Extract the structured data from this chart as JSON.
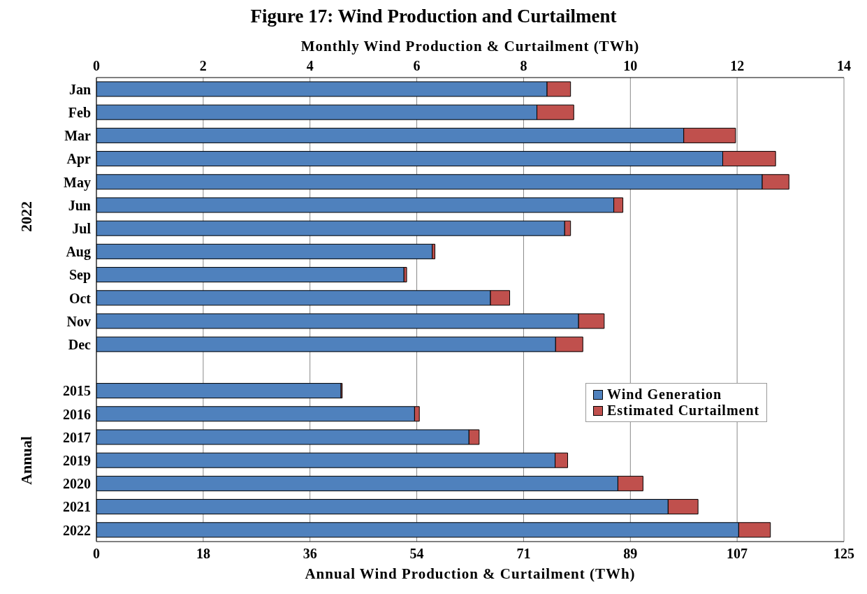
{
  "chart_data": {
    "type": "bar",
    "orientation": "horizontal",
    "stacked": true,
    "title": "Figure 17:  Wind Production and Curtailment",
    "x2label": "Monthly Wind Production & Curtailment (TWh)",
    "xlabel": "Annual Wind Production & Curtailment (TWh)",
    "categories": [
      "Jan",
      "Feb",
      "Mar",
      "Apr",
      "May",
      "Jun",
      "Jul",
      "Aug",
      "Sep",
      "Oct",
      "Nov",
      "Dec",
      null,
      "2015",
      "2016",
      "2017",
      "2019",
      "2020",
      "2021",
      "2022"
    ],
    "series": [
      {
        "name": "Wind Generation",
        "color": "#4f81bd",
        "axis": "x2",
        "values": [
          8.44,
          8.25,
          11.0,
          11.73,
          12.47,
          9.69,
          8.77,
          6.29,
          5.76,
          7.38,
          9.03,
          8.6,
          null,
          null,
          null,
          null,
          null,
          null,
          null,
          null
        ]
      },
      {
        "name": "Estimated Curtailment",
        "color": "#c0504d",
        "axis": "x2",
        "values": [
          0.44,
          0.69,
          0.97,
          0.99,
          0.5,
          0.17,
          0.11,
          0.05,
          0.05,
          0.36,
          0.48,
          0.51,
          null,
          null,
          null,
          null,
          null,
          null,
          null,
          null
        ]
      },
      {
        "color": "#4f81bd",
        "values": [
          null,
          null,
          null,
          null,
          null,
          null,
          null,
          null,
          null,
          null,
          null,
          null,
          null,
          40.9,
          53.2,
          62.3,
          76.7,
          87.2,
          95.6,
          107.4
        ]
      },
      {
        "color": "#c0504d",
        "values": [
          null,
          null,
          null,
          null,
          null,
          null,
          null,
          null,
          null,
          null,
          null,
          null,
          null,
          0.2,
          0.8,
          1.7,
          2.1,
          4.2,
          5.0,
          5.3
        ]
      }
    ],
    "x2lim": [
      0,
      14
    ],
    "x2ticks": [
      0,
      2,
      4,
      6,
      8,
      10,
      12,
      14
    ],
    "xlim": [
      0,
      125
    ],
    "xticks": [
      0,
      {
        "value": 17.86,
        "label": "18"
      },
      {
        "value": 35.71,
        "label": "36"
      },
      {
        "value": 53.57,
        "label": "54"
      },
      {
        "value": 71.43,
        "label": "71"
      },
      {
        "value": 89.29,
        "label": "89"
      },
      {
        "value": 107.14,
        "label": "107"
      },
      125
    ],
    "grid": "x",
    "legend": "right",
    "annotations": [
      "2022",
      "Annual"
    ]
  }
}
